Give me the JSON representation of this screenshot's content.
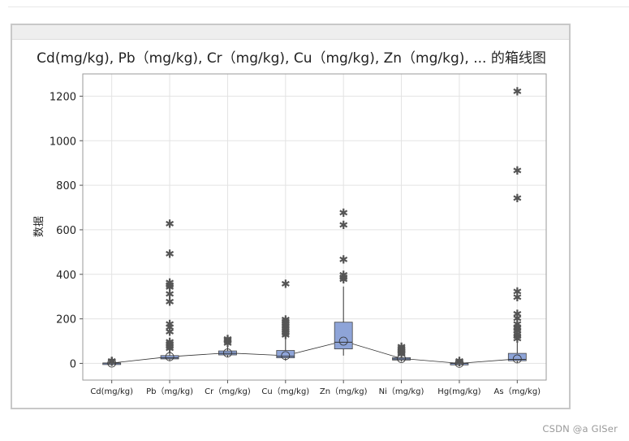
{
  "watermark": "CSDN @a  GISer",
  "chart_data": {
    "type": "box",
    "title": "Cd(mg/kg), Pb（mg/kg), Cr（mg/kg), Cu（mg/kg), Zn（mg/kg), ... 的箱线图",
    "ylabel": "数据",
    "xlabel": "",
    "ylim": [
      -75,
      1300
    ],
    "yticks": [
      0,
      200,
      400,
      600,
      800,
      1000,
      1200
    ],
    "grid": true,
    "box_color": "#8ea4d8",
    "outlier_color": "#555555",
    "categories": [
      "Cd(mg/kg)",
      "Pb（mg/kg)",
      "Cr（mg/kg)",
      "Cu（mg/kg)",
      "Zn（mg/kg)",
      "Ni（mg/kg)",
      "Hg(mg/kg)",
      "As（mg/kg)"
    ],
    "series": [
      {
        "name": "Cd(mg/kg)",
        "q1": 0.5,
        "median": 1,
        "q3": 2,
        "mean": 1.5,
        "whisker_low": 0,
        "whisker_high": 4,
        "outliers": [
          5,
          7,
          9
        ]
      },
      {
        "name": "Pb（mg/kg)",
        "q1": 20,
        "median": 25,
        "q3": 35,
        "mean": 30,
        "whisker_low": 12,
        "whisker_high": 55,
        "outliers": [
          65,
          75,
          85,
          95,
          140,
          160,
          175,
          275,
          310,
          340,
          350,
          360,
          490,
          625
        ]
      },
      {
        "name": "Cr（mg/kg)",
        "q1": 38,
        "median": 45,
        "q3": 56,
        "mean": 47,
        "whisker_low": 28,
        "whisker_high": 80,
        "outliers": [
          90,
          98,
          103,
          108
        ]
      },
      {
        "name": "Cu（mg/kg)",
        "q1": 25,
        "median": 32,
        "q3": 58,
        "mean": 35,
        "whisker_low": 12,
        "whisker_high": 110,
        "outliers": [
          125,
          135,
          145,
          155,
          165,
          175,
          185,
          195,
          355
        ]
      },
      {
        "name": "Zn（mg/kg)",
        "q1": 65,
        "median": 95,
        "q3": 185,
        "mean": 100,
        "whisker_low": 35,
        "whisker_high": 345,
        "outliers": [
          375,
          385,
          395,
          465,
          620,
          675
        ]
      },
      {
        "name": "Ni（mg/kg)",
        "q1": 15,
        "median": 20,
        "q3": 26,
        "mean": 22,
        "whisker_low": 8,
        "whisker_high": 35,
        "outliers": [
          40,
          45,
          50,
          55,
          60,
          65,
          72
        ]
      },
      {
        "name": "Hg(mg/kg)",
        "q1": 0.1,
        "median": 0.2,
        "q3": 0.5,
        "mean": 0.3,
        "whisker_low": 0,
        "whisker_high": 1,
        "outliers": [
          3,
          6,
          9
        ]
      },
      {
        "name": "As（mg/kg)",
        "q1": 12,
        "median": 18,
        "q3": 45,
        "mean": 20,
        "whisker_low": 3,
        "whisker_high": 95,
        "outliers": [
          110,
          120,
          130,
          145,
          155,
          160,
          175,
          200,
          220,
          295,
          320,
          740,
          865,
          1220
        ]
      }
    ]
  }
}
